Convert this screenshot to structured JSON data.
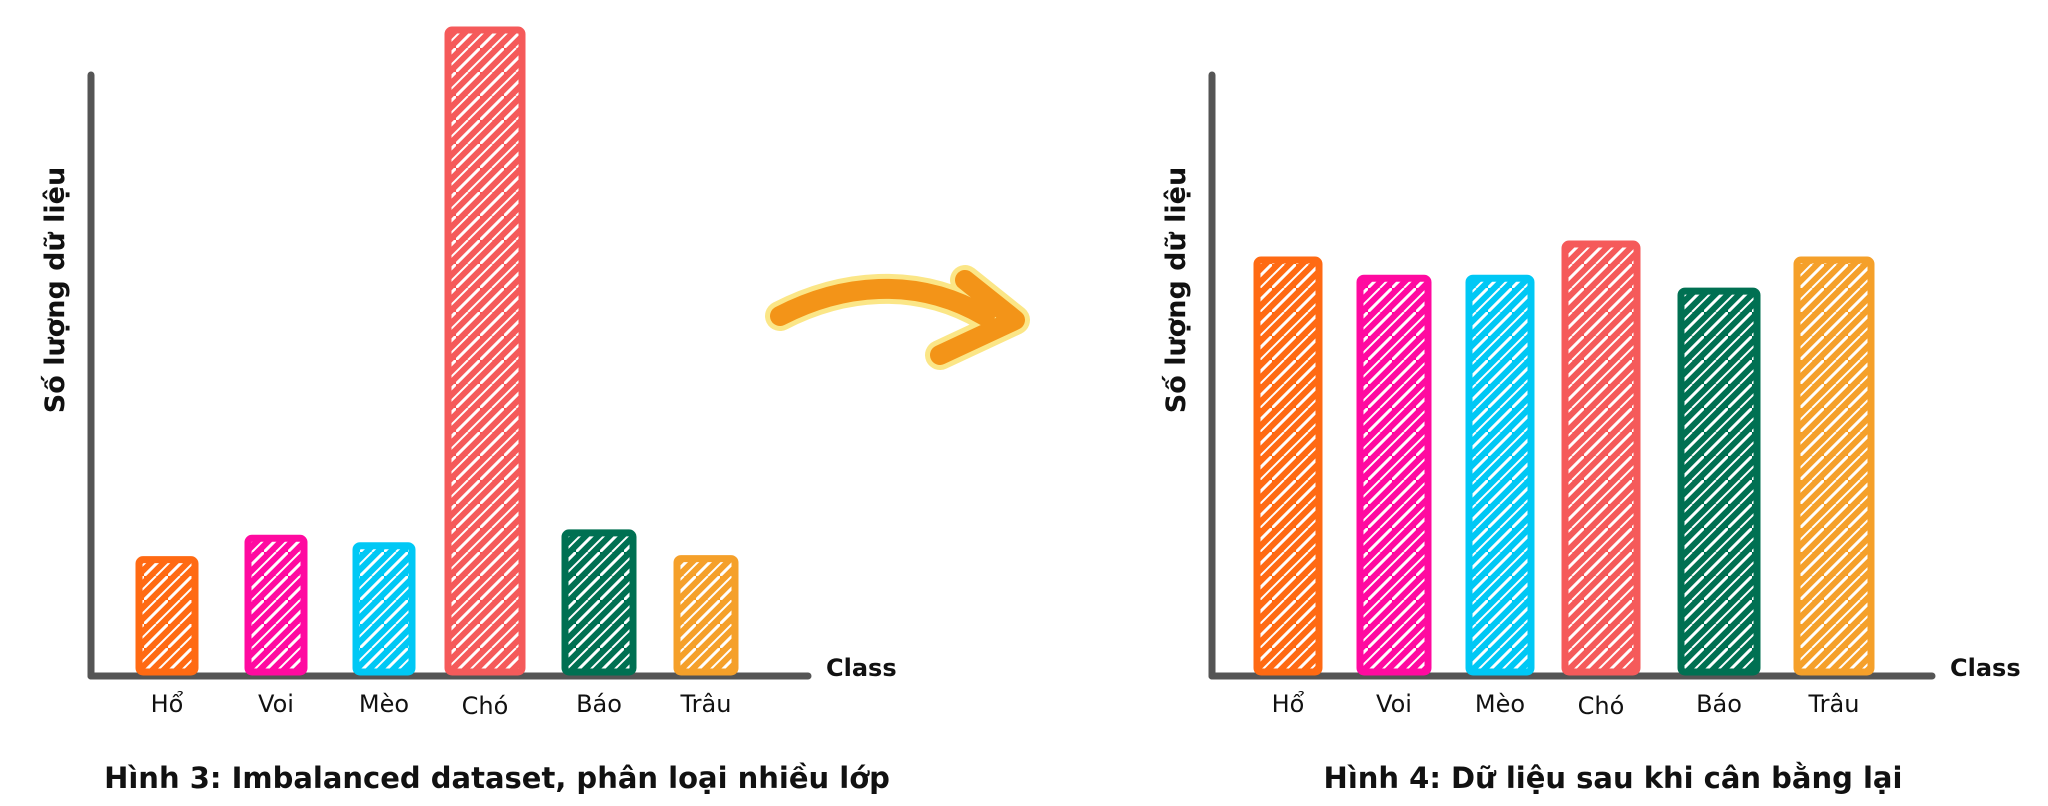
{
  "chart_data": [
    {
      "type": "bar",
      "title": "",
      "caption": "Hình 3: Imbalanced dataset, phân loại nhiều lớp",
      "xlabel": "Class",
      "ylabel": "Số lượng dữ liệu",
      "categories": [
        "Hổ",
        "Voi",
        "Mèo",
        "Chó",
        "Báo",
        "Trâu"
      ],
      "values": [
        10.5,
        12.5,
        11.8,
        60,
        13,
        10.6
      ],
      "colors": [
        "#ff6a13",
        "#ff0aa0",
        "#00c8f5",
        "#f55a5a",
        "#007052",
        "#f5a02a"
      ],
      "ylim": [
        0,
        60
      ],
      "grid": false,
      "legend": false
    },
    {
      "type": "bar",
      "title": "",
      "caption": "Hình 4: Dữ liệu sau khi cân bằng lại",
      "xlabel": "Class",
      "ylabel": "Số lượng dữ liệu",
      "categories": [
        "Hổ",
        "Voi",
        "Mèo",
        "Chó",
        "Báo",
        "Trâu"
      ],
      "values": [
        38.5,
        36.8,
        36.8,
        40,
        35.6,
        38.5
      ],
      "colors": [
        "#ff6a13",
        "#ff0aa0",
        "#00c8f5",
        "#f55a5a",
        "#007052",
        "#f5a02a"
      ],
      "ylim": [
        0,
        60
      ],
      "grid": false,
      "legend": false
    }
  ],
  "arrow": {
    "color": "#f39418",
    "glow_color": "#fbe37a",
    "icon": "curved-arrow-right-icon"
  }
}
